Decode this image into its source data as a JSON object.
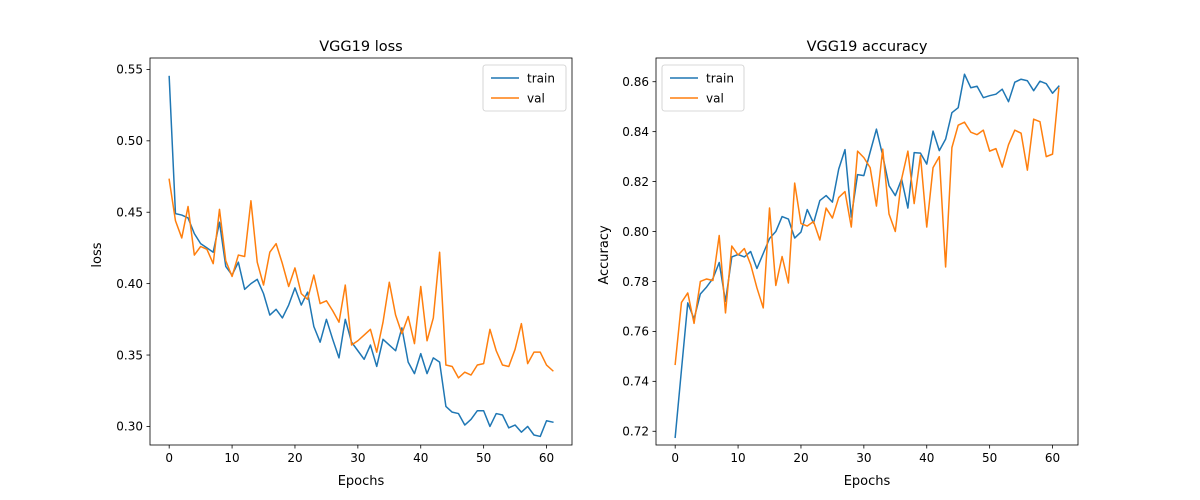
{
  "chart_data": [
    {
      "type": "line",
      "title": "VGG19 loss",
      "xlabel": "Epochs",
      "ylabel": "loss",
      "xlim": [
        -3.05,
        64.05
      ],
      "ylim": [
        0.287,
        0.558
      ],
      "xticks": [
        0,
        10,
        20,
        30,
        40,
        50,
        60
      ],
      "yticks": [
        0.3,
        0.35,
        0.4,
        0.45,
        0.5,
        0.55
      ],
      "ytick_labels": [
        "0.30",
        "0.35",
        "0.40",
        "0.45",
        "0.50",
        "0.55"
      ],
      "legend_position": "top-right",
      "series": [
        {
          "name": "train",
          "color": "#1f77b4",
          "values": [
            0.545,
            0.449,
            0.448,
            0.446,
            0.435,
            0.428,
            0.425,
            0.422,
            0.443,
            0.412,
            0.406,
            0.415,
            0.396,
            0.4,
            0.403,
            0.393,
            0.378,
            0.382,
            0.376,
            0.385,
            0.397,
            0.385,
            0.394,
            0.37,
            0.359,
            0.375,
            0.361,
            0.348,
            0.375,
            0.359,
            0.353,
            0.347,
            0.357,
            0.342,
            0.361,
            0.357,
            0.353,
            0.369,
            0.345,
            0.337,
            0.351,
            0.337,
            0.348,
            0.345,
            0.314,
            0.31,
            0.309,
            0.301,
            0.305,
            0.311,
            0.311,
            0.3,
            0.309,
            0.308,
            0.299,
            0.301,
            0.296,
            0.3,
            0.294,
            0.293,
            0.304,
            0.303
          ]
        },
        {
          "name": "val",
          "color": "#ff7f0e",
          "values": [
            0.473,
            0.444,
            0.432,
            0.454,
            0.42,
            0.426,
            0.424,
            0.414,
            0.452,
            0.416,
            0.405,
            0.42,
            0.419,
            0.458,
            0.415,
            0.399,
            0.422,
            0.428,
            0.414,
            0.398,
            0.411,
            0.393,
            0.389,
            0.406,
            0.386,
            0.388,
            0.381,
            0.373,
            0.399,
            0.357,
            0.36,
            0.364,
            0.368,
            0.352,
            0.373,
            0.401,
            0.378,
            0.365,
            0.377,
            0.358,
            0.398,
            0.36,
            0.376,
            0.422,
            0.343,
            0.342,
            0.334,
            0.338,
            0.336,
            0.343,
            0.344,
            0.368,
            0.353,
            0.343,
            0.342,
            0.354,
            0.372,
            0.344,
            0.352,
            0.352,
            0.343,
            0.339
          ]
        }
      ]
    },
    {
      "type": "line",
      "title": "VGG19 accuracy",
      "xlabel": "Epochs",
      "ylabel": "Accuracy",
      "xlim": [
        -3.05,
        64.05
      ],
      "ylim": [
        0.7145,
        0.8695
      ],
      "xticks": [
        0,
        10,
        20,
        30,
        40,
        50,
        60
      ],
      "yticks": [
        0.72,
        0.74,
        0.76,
        0.78,
        0.8,
        0.82,
        0.84,
        0.86
      ],
      "ytick_labels": [
        "0.72",
        "0.74",
        "0.76",
        "0.78",
        "0.80",
        "0.82",
        "0.84",
        "0.86"
      ],
      "legend_position": "top-left",
      "series": [
        {
          "name": "train",
          "color": "#1f77b4",
          "values": [
            0.7176,
            0.7446,
            0.7714,
            0.765,
            0.775,
            0.7778,
            0.7812,
            0.7876,
            0.772,
            0.7898,
            0.7908,
            0.7898,
            0.792,
            0.7852,
            0.7912,
            0.7972,
            0.8,
            0.806,
            0.805,
            0.7974,
            0.7998,
            0.8088,
            0.8034,
            0.8124,
            0.8144,
            0.8118,
            0.825,
            0.8328,
            0.8058,
            0.8228,
            0.8224,
            0.8318,
            0.841,
            0.8304,
            0.8184,
            0.8144,
            0.821,
            0.8094,
            0.8316,
            0.8314,
            0.827,
            0.8402,
            0.8324,
            0.837,
            0.8476,
            0.8496,
            0.863,
            0.8576,
            0.8582,
            0.8536,
            0.8544,
            0.855,
            0.857,
            0.852,
            0.8598,
            0.861,
            0.8604,
            0.8564,
            0.8602,
            0.8592,
            0.8554,
            0.8582
          ]
        },
        {
          "name": "val",
          "color": "#ff7f0e",
          "values": [
            0.7468,
            0.7716,
            0.7754,
            0.7632,
            0.78,
            0.781,
            0.7804,
            0.7984,
            0.7674,
            0.7942,
            0.7906,
            0.7932,
            0.7868,
            0.7774,
            0.7694,
            0.8094,
            0.7784,
            0.79,
            0.7794,
            0.8194,
            0.8032,
            0.8022,
            0.804,
            0.7966,
            0.8094,
            0.8054,
            0.8136,
            0.816,
            0.8018,
            0.8322,
            0.8296,
            0.8256,
            0.8102,
            0.833,
            0.807,
            0.8,
            0.821,
            0.8322,
            0.8112,
            0.8304,
            0.8018,
            0.8256,
            0.83,
            0.7858,
            0.8336,
            0.8426,
            0.8438,
            0.8398,
            0.8388,
            0.8406,
            0.8322,
            0.8332,
            0.8258,
            0.8348,
            0.8406,
            0.8394,
            0.8246,
            0.845,
            0.844,
            0.83,
            0.831,
            0.8574
          ]
        }
      ]
    }
  ]
}
